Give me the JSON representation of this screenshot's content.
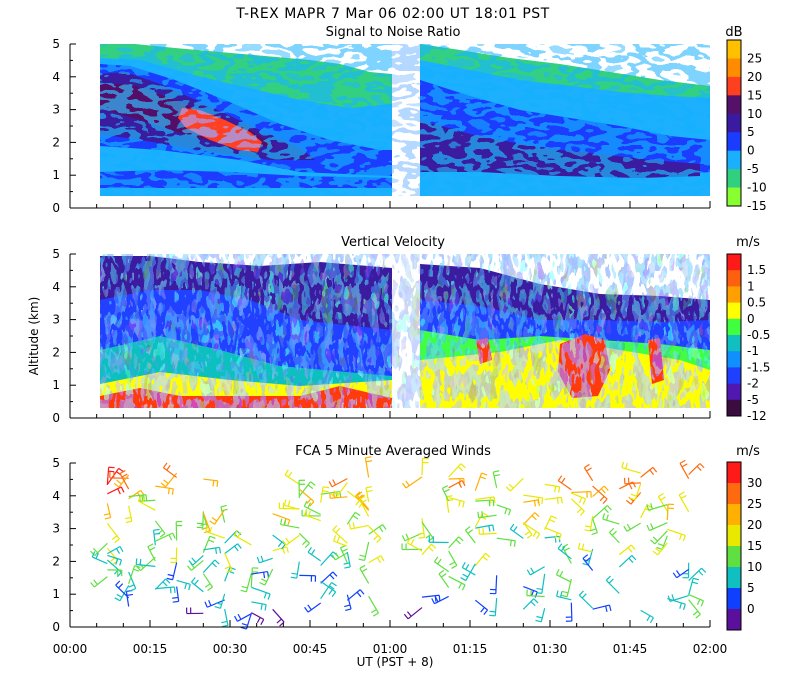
{
  "header": {
    "title": "T-REX   MAPR   7 Mar 06   02:00 UT   18:01   PST"
  },
  "chart_data": [
    {
      "type": "heatmap",
      "title": "Signal to Noise Ratio",
      "ylabel": "",
      "ylim": [
        0,
        5
      ],
      "yticks": [
        "0",
        "1",
        "2",
        "3",
        "4",
        "5"
      ],
      "colorbar": {
        "unit": "dB",
        "labels": [
          "25",
          "20",
          "15",
          "10",
          "5",
          "0",
          "-5",
          "-10",
          "-15"
        ],
        "colors": [
          "#ffc000",
          "#ff8c00",
          "#ff4020",
          "#55106a",
          "#3a1aa0",
          "#1a3cff",
          "#1ab0ff",
          "#30d080",
          "#88ff30"
        ]
      },
      "data_gap_utc": [
        "00:59",
        "01:04"
      ]
    },
    {
      "type": "heatmap",
      "title": "Vertical Velocity",
      "ylabel": "Altitude (km)",
      "ylim": [
        0,
        5
      ],
      "yticks": [
        "0",
        "1",
        "2",
        "3",
        "4",
        "5"
      ],
      "colorbar": {
        "unit": "m/s",
        "labels": [
          "1.5",
          "1",
          "0.5",
          "0",
          "-0.5",
          "-1",
          "-1.5",
          "-2",
          "-5",
          "-12"
        ],
        "colors": [
          "#ff1a1a",
          "#ff6010",
          "#ffa000",
          "#ffff00",
          "#40ff40",
          "#10c0c0",
          "#1090ff",
          "#2040ff",
          "#5018b0",
          "#3a0c40"
        ]
      },
      "data_gap_utc": [
        "00:59",
        "01:04"
      ]
    },
    {
      "type": "scatter",
      "title": "FCA 5 Minute Averaged Winds",
      "xlabel": "UT  (PST + 8)",
      "ylabel": "",
      "ylim": [
        0,
        5
      ],
      "yticks": [
        "0",
        "1",
        "2",
        "3",
        "4",
        "5"
      ],
      "xticks": [
        "00:00",
        "00:15",
        "00:30",
        "00:45",
        "01:00",
        "01:15",
        "01:30",
        "01:45",
        "02:00"
      ],
      "xlim_utc": [
        "00:00",
        "02:00"
      ],
      "colorbar": {
        "unit": "m/s",
        "labels": [
          "30",
          "25",
          "20",
          "15",
          "10",
          "5",
          "0"
        ],
        "colors": [
          "#ff1a1a",
          "#ff6a10",
          "#ffb000",
          "#e8e800",
          "#60e040",
          "#10c0c0",
          "#1040ff",
          "#5a109a"
        ]
      },
      "barb_columns_utc": [
        "00:07",
        "00:11",
        "00:16",
        "00:20",
        "00:25",
        "00:29",
        "00:34",
        "00:38",
        "00:43",
        "00:47",
        "00:52",
        "00:56",
        "01:06",
        "01:11",
        "01:16",
        "01:20",
        "01:25",
        "01:29",
        "01:34",
        "01:38",
        "01:43",
        "01:47",
        "01:52",
        "01:56"
      ]
    }
  ]
}
